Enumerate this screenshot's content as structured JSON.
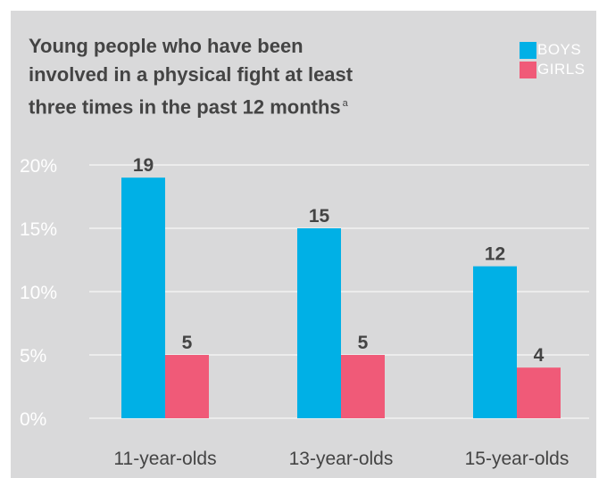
{
  "chart_data": {
    "type": "bar",
    "title": "Young people who have been involved in a physical fight at least three times in the past 12 months",
    "title_lines": [
      "Young people who have been",
      "involved in a physical fight at least",
      "three times in the past 12 months"
    ],
    "title_note": "a",
    "categories": [
      "11-year-olds",
      "13-year-olds",
      "15-year-olds"
    ],
    "series": [
      {
        "name": "BOYS",
        "color": "#00b0e6",
        "values": [
          19,
          15,
          12
        ]
      },
      {
        "name": "GIRLS",
        "color": "#f05a78",
        "values": [
          5,
          5,
          4
        ]
      }
    ],
    "y_ticks": [
      0,
      5,
      10,
      15,
      20
    ],
    "y_tick_labels": [
      "0%",
      "5%",
      "10%",
      "15%",
      "20%"
    ],
    "ylim": [
      0,
      20
    ],
    "xlabel": "",
    "ylabel": "",
    "grid": true,
    "legend_position": "top-right"
  }
}
